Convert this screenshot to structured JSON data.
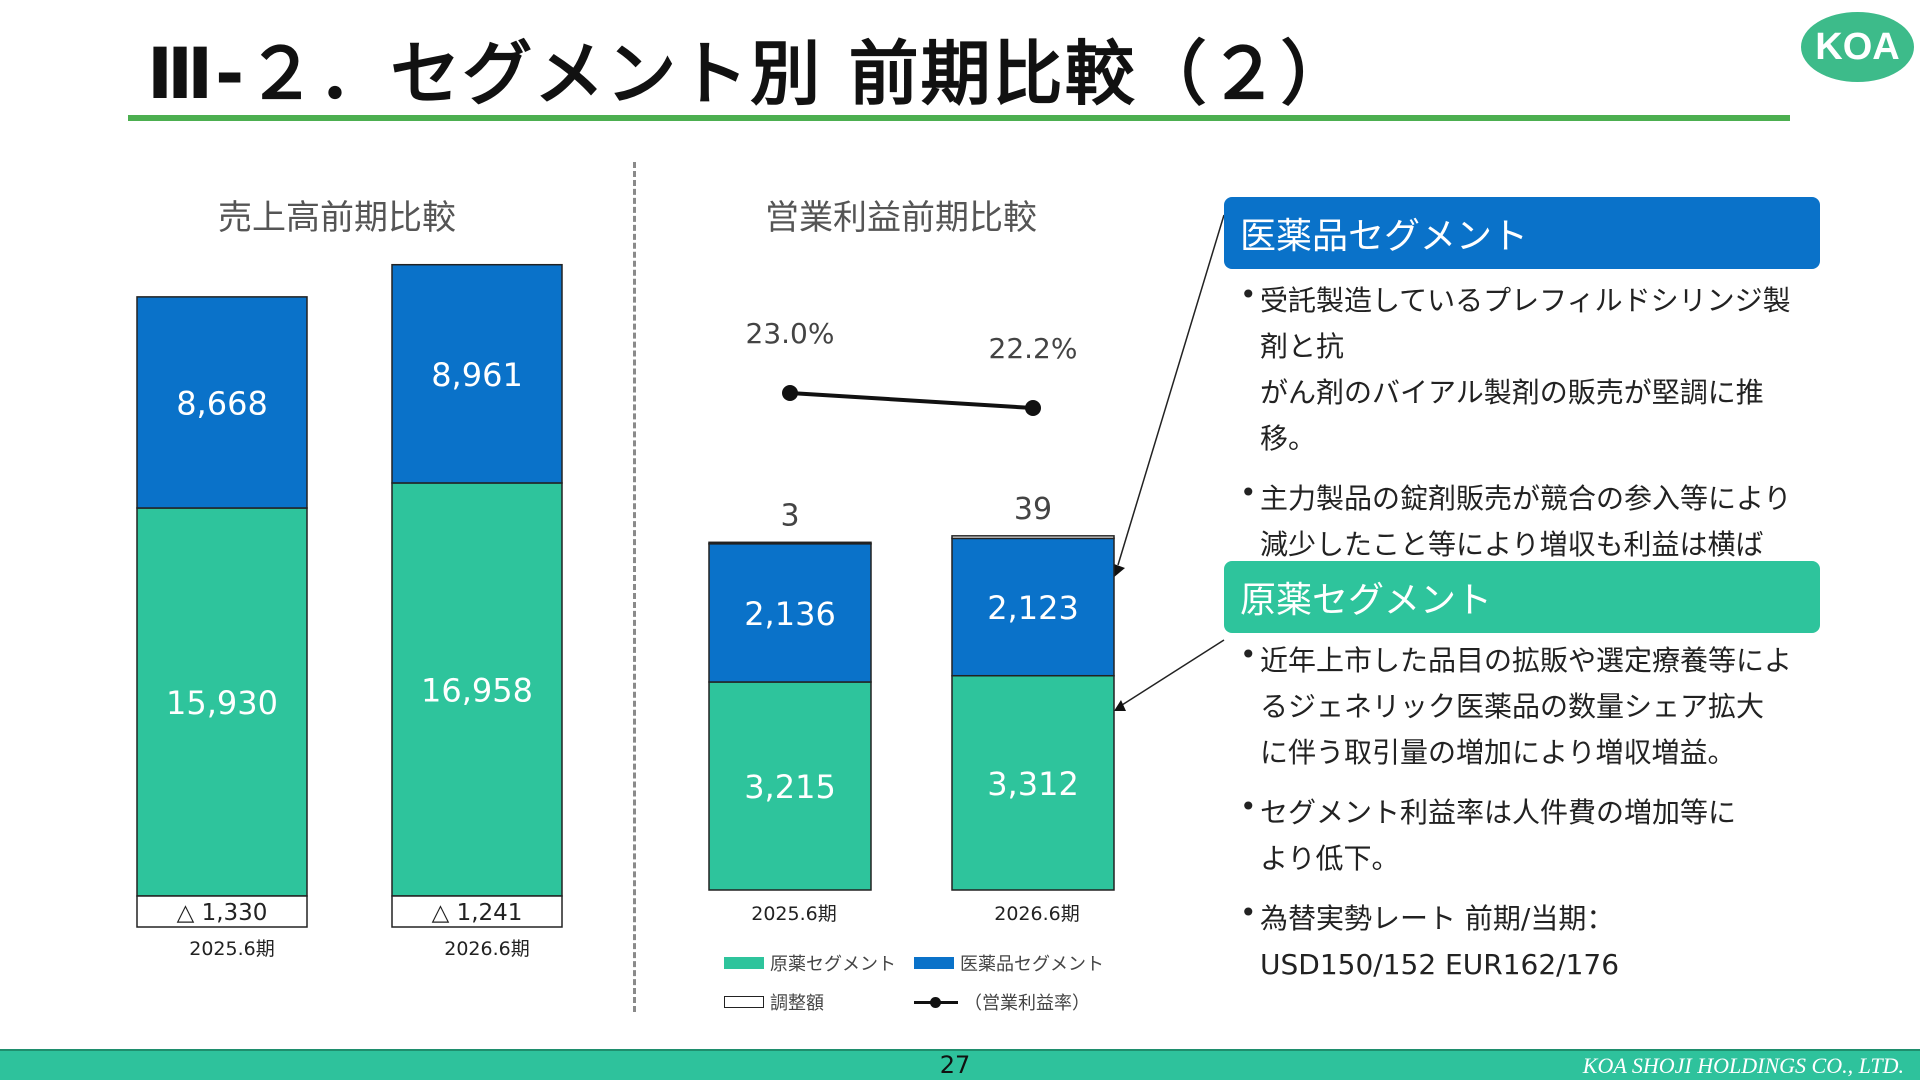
{
  "header": {
    "title": "Ⅲ-２．セグメント別 前期比較（２）",
    "logo": "KOA"
  },
  "colors": {
    "gensuyaku": "#2ec49c",
    "iyakuhin": "#0a72c9",
    "title_rule": "#4caf50",
    "footer": "#2ec29c"
  },
  "chart_data": [
    {
      "type": "bar",
      "stacked": true,
      "title": "売上高前期比較",
      "categories": [
        "2025.6期",
        "2026.6期"
      ],
      "series": [
        {
          "name": "原薬セグメント",
          "values": [
            15930,
            16958
          ],
          "labels": [
            "15,930",
            "16,958"
          ],
          "color": "#2ec49c"
        },
        {
          "name": "医薬品セグメント",
          "values": [
            8668,
            8961
          ],
          "labels": [
            "8,668",
            "8,961"
          ],
          "color": "#0a72c9"
        },
        {
          "name": "調整額",
          "values": [
            -1330,
            -1241
          ],
          "labels": [
            "△ 1,330",
            "△ 1,241"
          ],
          "color": "#ffffff"
        }
      ]
    },
    {
      "type": "bar",
      "stacked": true,
      "title": "営業利益前期比較",
      "categories": [
        "2025.6期",
        "2026.6期"
      ],
      "series": [
        {
          "name": "原薬セグメント",
          "values": [
            3215,
            3312
          ],
          "labels": [
            "3,215",
            "3,312"
          ],
          "color": "#2ec49c"
        },
        {
          "name": "医薬品セグメント",
          "values": [
            2136,
            2123
          ],
          "labels": [
            "2,136",
            "2,123"
          ],
          "color": "#0a72c9"
        },
        {
          "name": "調整額",
          "values": [
            3,
            39
          ],
          "labels": [
            "3",
            "39"
          ],
          "color": "#ffffff"
        }
      ],
      "line": {
        "name": "（営業利益率）",
        "values": [
          23.0,
          22.2
        ],
        "labels": [
          "23.0%",
          "22.2%"
        ],
        "unit": "%"
      }
    }
  ],
  "legend": {
    "gensuyaku": "原薬セグメント",
    "iyakuhin": "医薬品セグメント",
    "adjustment": "調整額",
    "margin": "（営業利益率）"
  },
  "segments": {
    "iyakuhin": {
      "title": "医薬品セグメント",
      "bullets": [
        [
          "受託製造しているプレフィルドシリンジ製剤と抗",
          "がん剤のバイアル製剤の販売が堅調に推移。"
        ],
        [
          "主力製品の錠剤販売が競合の参入等により",
          "減少したこと等により増収も利益は横ばい。"
        ]
      ]
    },
    "gensuyaku": {
      "title": "原薬セグメント",
      "bullets": [
        [
          "近年上市した品目の拡販や選定療養等によ",
          "るジェネリック医薬品の数量シェア拡大",
          "に伴う取引量の増加により増収増益。"
        ],
        [
          "セグメント利益率は人件費の増加等に",
          "より低下。"
        ],
        [
          "為替実勢レート 前期/当期：",
          "USD150/152  EUR162/176"
        ]
      ]
    }
  },
  "footer": {
    "page": "27",
    "company": "KOA SHOJI HOLDINGS CO., LTD."
  }
}
